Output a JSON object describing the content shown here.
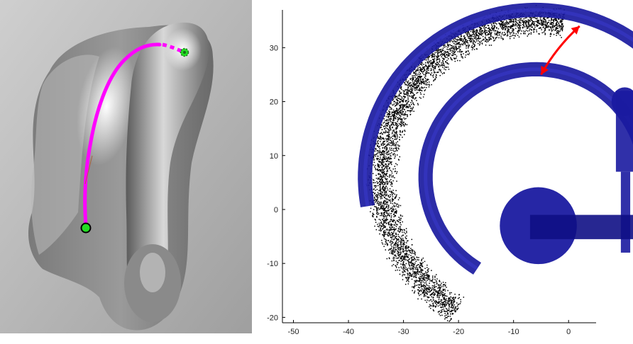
{
  "left_panel": {
    "background_gradient": [
      "#d2d2d2",
      "#a8a8a8"
    ],
    "surface_color": "#8c8c8c",
    "highlight_color": "#ffffff",
    "path_color": "#ff00ff",
    "start_marker_color": "#22dd22",
    "end_marker_color": "#22dd22"
  },
  "chart_data": {
    "type": "scatter",
    "title": "",
    "xlabel": "",
    "ylabel": "",
    "xlim": [
      -52,
      5
    ],
    "ylim": [
      -21,
      37
    ],
    "xticks": [
      -50,
      -40,
      -30,
      -20,
      -10,
      0
    ],
    "yticks": [
      -20,
      -10,
      0,
      10,
      20,
      30
    ],
    "grid": false,
    "point_color": "#000000",
    "tube_color": "#1a1aa0",
    "arrow_color": "#ff0000",
    "point_cloud": {
      "description_center": [
        -5,
        6
      ],
      "radius_inner": 26,
      "radius_outer": 32,
      "angle_start_deg": 82,
      "angle_end_deg": 238,
      "count": 4500
    },
    "tubes": [
      {
        "name": "outer-arc",
        "center": [
          -6,
          6
        ],
        "radius": 31,
        "angle_start_deg": 5,
        "angle_end_deg": 190
      },
      {
        "name": "inner-arc",
        "center": [
          -6,
          6
        ],
        "radius": 20,
        "angle_start_deg": 0,
        "angle_end_deg": 238
      }
    ],
    "arrow": {
      "from": [
        -5,
        25
      ],
      "to": [
        2,
        34
      ]
    }
  }
}
